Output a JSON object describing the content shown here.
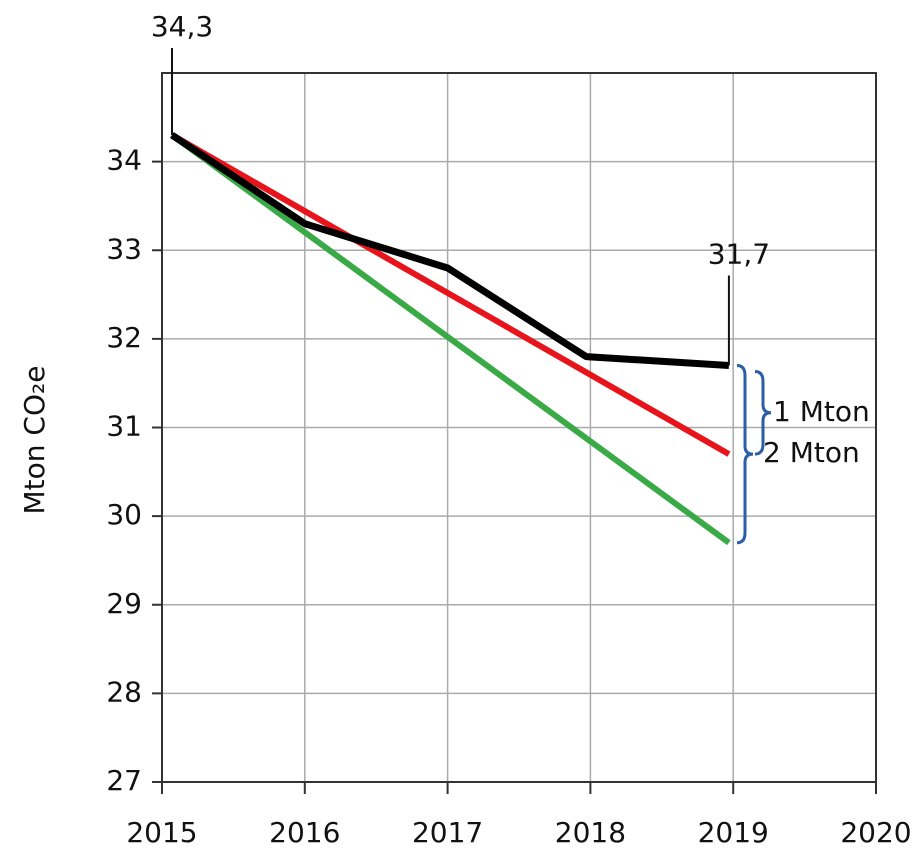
{
  "chart_data": {
    "type": "line",
    "y_label": "Mton CO₂e",
    "xlim": [
      2015,
      2020
    ],
    "xticks": [
      2015,
      2016,
      2017,
      2018,
      2019,
      2020
    ],
    "ylim": [
      27,
      35
    ],
    "yticks": [
      27,
      28,
      29,
      30,
      31,
      32,
      33,
      34
    ],
    "grid": true,
    "series": [
      {
        "color": "#e8141c",
        "x": [
          2015.07,
          2018.97
        ],
        "values": [
          34.3,
          30.7
        ]
      },
      {
        "color": "#3aaa47",
        "x": [
          2015.07,
          2018.97
        ],
        "values": [
          34.3,
          29.7
        ]
      },
      {
        "color": "#000000",
        "x": [
          2015.07,
          2016,
          2017,
          2017.97,
          2018.97
        ],
        "values": [
          34.3,
          33.3,
          32.8,
          31.8,
          31.7
        ],
        "value_labels": [
          "34,3",
          null,
          null,
          null,
          "31,7"
        ]
      }
    ],
    "annotations": [
      "1 Mton",
      "2 Mton"
    ]
  }
}
